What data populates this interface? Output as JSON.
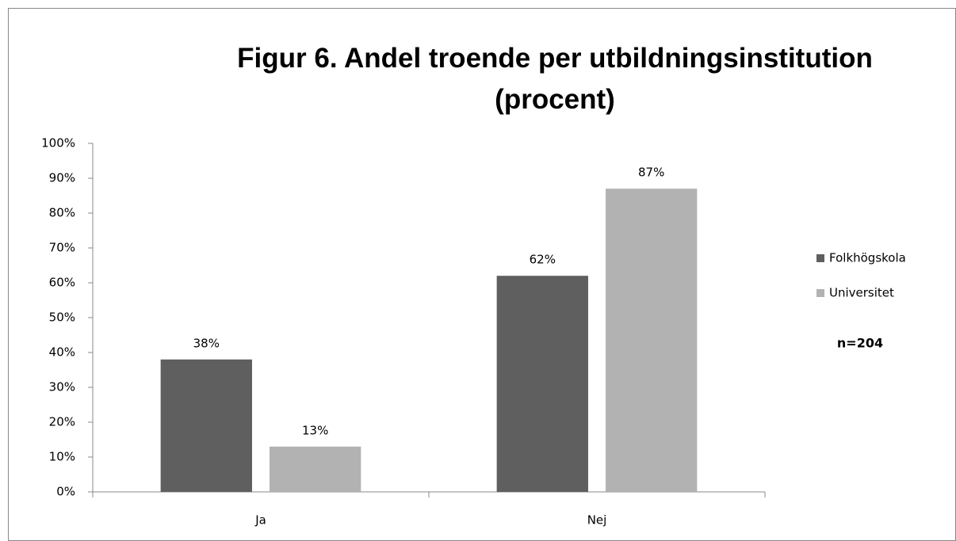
{
  "chart_data": {
    "type": "bar",
    "title": "Figur 6. Andel troende per utbildningsinstitution\n(procent)",
    "categories": [
      "Ja",
      "Nej"
    ],
    "series": [
      {
        "name": "Folkhögskola",
        "color": "#5f5f5f",
        "values": [
          38,
          62
        ],
        "value_labels": [
          "38%",
          "62%"
        ]
      },
      {
        "name": "Universitet",
        "color": "#b2b2b2",
        "values": [
          13,
          87
        ],
        "value_labels": [
          "13%",
          "87%"
        ]
      }
    ],
    "ylim": [
      0,
      100
    ],
    "yticks": [
      {
        "value": 0,
        "label": "0%"
      },
      {
        "value": 10,
        "label": "10%"
      },
      {
        "value": 20,
        "label": "20%"
      },
      {
        "value": 30,
        "label": "30%"
      },
      {
        "value": 40,
        "label": "40%"
      },
      {
        "value": 50,
        "label": "50%"
      },
      {
        "value": 60,
        "label": "60%"
      },
      {
        "value": 70,
        "label": "70%"
      },
      {
        "value": 80,
        "label": "80%"
      },
      {
        "value": 90,
        "label": "90%"
      },
      {
        "value": 100,
        "label": "100%"
      }
    ],
    "legend": "right",
    "annotation": "n=204"
  }
}
